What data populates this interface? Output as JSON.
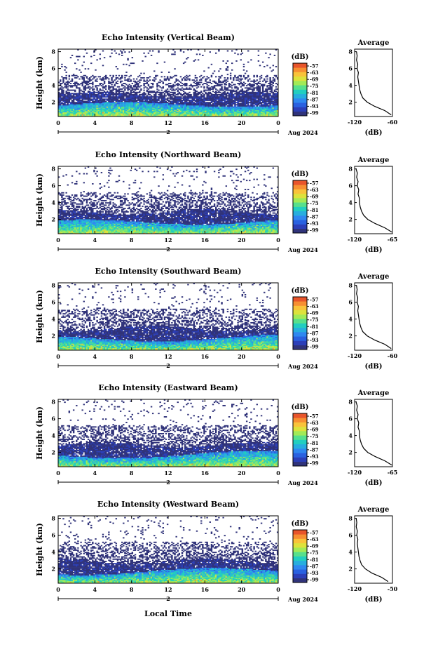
{
  "figure": {
    "xlabel": "Local Time",
    "date_label": "Aug 2024",
    "day_label": "2",
    "colorbar_unit": "(dB)",
    "avg_title": "Average",
    "avg_xlabel": "(dB)"
  },
  "colors": {
    "scale": [
      "#30337a",
      "#2c3fb8",
      "#2a61e0",
      "#2f88f0",
      "#27aede",
      "#22cec0",
      "#57e08c",
      "#a2ea57",
      "#dde23c",
      "#f9c33a",
      "#f78f32",
      "#e8552b"
    ]
  },
  "chart_data": [
    {
      "type": "heatmap",
      "title": "Echo Intensity (Vertical Beam)",
      "ylabel": "Height (km)",
      "x_ticks": [
        "0",
        "4",
        "8",
        "12",
        "16",
        "20",
        "0"
      ],
      "y_ticks": [
        "2",
        "4",
        "6",
        "8"
      ],
      "xlim": [
        0,
        24
      ],
      "ylim": [
        0.3,
        8.3
      ],
      "colorbar_ticks": [
        "-57",
        "-63",
        "-69",
        "-75",
        "-81",
        "-87",
        "-93",
        "-99"
      ],
      "avg_profile": {
        "xlim": [
          -120,
          -60
        ],
        "x_ticks": [
          "-120",
          "-60"
        ],
        "y_ticks": [
          "2",
          "4",
          "6",
          "8"
        ],
        "height": [
          0.5,
          1.0,
          1.5,
          2.0,
          2.5,
          3.0,
          3.5,
          4.0,
          4.5,
          5.0,
          5.5,
          6.0,
          6.5,
          7.0,
          7.5,
          8.0
        ],
        "values": [
          -62,
          -72,
          -88,
          -100,
          -107,
          -110,
          -112,
          -113,
          -114,
          -115,
          -114,
          -116,
          -115,
          -117,
          -116,
          -117
        ]
      }
    },
    {
      "type": "heatmap",
      "title": "Echo Intensity (Northward Beam)",
      "ylabel": "Height (km)",
      "x_ticks": [
        "0",
        "4",
        "8",
        "12",
        "16",
        "20",
        "0"
      ],
      "y_ticks": [
        "2",
        "4",
        "6",
        "8"
      ],
      "xlim": [
        0,
        24
      ],
      "ylim": [
        0.3,
        8.3
      ],
      "colorbar_ticks": [
        "-57",
        "-63",
        "-69",
        "-75",
        "-81",
        "-87",
        "-93",
        "-99"
      ],
      "avg_profile": {
        "xlim": [
          -120,
          -65
        ],
        "x_ticks": [
          "-120",
          "-65"
        ],
        "y_ticks": [
          "2",
          "4",
          "6",
          "8"
        ],
        "height": [
          0.5,
          1.0,
          1.5,
          2.0,
          2.5,
          3.0,
          3.5,
          4.0,
          4.5,
          5.0,
          5.5,
          6.0,
          6.5,
          7.0,
          7.5,
          8.0
        ],
        "values": [
          -66,
          -76,
          -90,
          -101,
          -107,
          -110,
          -112,
          -113,
          -113,
          -115,
          -114,
          -116,
          -115,
          -117,
          -116,
          -118
        ]
      }
    },
    {
      "type": "heatmap",
      "title": "Echo Intensity (Southward Beam)",
      "ylabel": "Height (km)",
      "x_ticks": [
        "0",
        "4",
        "8",
        "12",
        "16",
        "20",
        "0"
      ],
      "y_ticks": [
        "2",
        "4",
        "6",
        "8"
      ],
      "xlim": [
        0,
        24
      ],
      "ylim": [
        0.3,
        8.3
      ],
      "colorbar_ticks": [
        "-57",
        "-63",
        "-69",
        "-75",
        "-81",
        "-87",
        "-93",
        "-99"
      ],
      "avg_profile": {
        "xlim": [
          -120,
          -60
        ],
        "x_ticks": [
          "-120",
          "-60"
        ],
        "y_ticks": [
          "2",
          "4",
          "6",
          "8"
        ],
        "height": [
          0.5,
          1.0,
          1.5,
          2.0,
          2.5,
          3.0,
          3.5,
          4.0,
          4.5,
          5.0,
          5.5,
          6.0,
          6.5,
          7.0,
          7.5,
          8.0
        ],
        "values": [
          -62,
          -72,
          -88,
          -100,
          -107,
          -110,
          -112,
          -113,
          -114,
          -115,
          -114,
          -116,
          -115,
          -117,
          -116,
          -117
        ]
      }
    },
    {
      "type": "heatmap",
      "title": "Echo Intensity (Eastward Beam)",
      "ylabel": "Height (km)",
      "x_ticks": [
        "0",
        "4",
        "8",
        "12",
        "16",
        "20",
        "0"
      ],
      "y_ticks": [
        "2",
        "4",
        "6",
        "8"
      ],
      "xlim": [
        0,
        24
      ],
      "ylim": [
        0.3,
        8.3
      ],
      "colorbar_ticks": [
        "-57",
        "-63",
        "-69",
        "-75",
        "-81",
        "-87",
        "-93",
        "-99"
      ],
      "avg_profile": {
        "xlim": [
          -120,
          -65
        ],
        "x_ticks": [
          "-120",
          "-65"
        ],
        "y_ticks": [
          "2",
          "4",
          "6",
          "8"
        ],
        "height": [
          0.5,
          1.0,
          1.5,
          2.0,
          2.5,
          3.0,
          3.5,
          4.0,
          4.5,
          5.0,
          5.5,
          6.0,
          6.5,
          7.0,
          7.5,
          8.0
        ],
        "values": [
          -66,
          -76,
          -90,
          -101,
          -107,
          -110,
          -112,
          -113,
          -113,
          -115,
          -114,
          -116,
          -115,
          -117,
          -116,
          -118
        ]
      }
    },
    {
      "type": "heatmap",
      "title": "Echo Intensity (Westward Beam)",
      "ylabel": "Height (km)",
      "x_ticks": [
        "0",
        "4",
        "8",
        "12",
        "16",
        "20",
        "0"
      ],
      "y_ticks": [
        "2",
        "4",
        "6",
        "8"
      ],
      "xlim": [
        0,
        24
      ],
      "ylim": [
        0.3,
        8.3
      ],
      "colorbar_ticks": [
        "-57",
        "-63",
        "-69",
        "-75",
        "-81",
        "-87",
        "-93",
        "-99"
      ],
      "avg_profile": {
        "xlim": [
          -120,
          -50
        ],
        "x_ticks": [
          "-120",
          "-50"
        ],
        "y_ticks": [
          "2",
          "4",
          "6",
          "8"
        ],
        "height": [
          0.5,
          1.0,
          1.5,
          2.0,
          2.5,
          3.0,
          3.5,
          4.0,
          4.5,
          5.0,
          5.5,
          6.0,
          6.5,
          7.0,
          7.5,
          8.0
        ],
        "values": [
          -58,
          -70,
          -88,
          -100,
          -107,
          -110,
          -112,
          -113,
          -114,
          -115,
          -114,
          -116,
          -115,
          -117,
          -116,
          -117
        ]
      }
    }
  ]
}
